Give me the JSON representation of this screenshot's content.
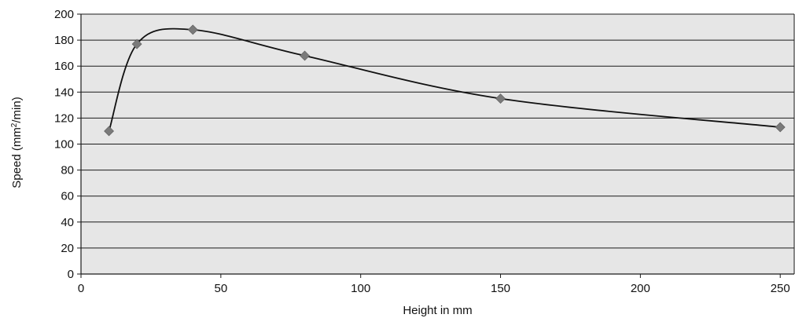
{
  "chart_data": {
    "type": "line",
    "title": "",
    "xlabel": "Height in mm",
    "ylabel": {
      "prefix": "Speed (mm",
      "superscript": "2",
      "suffix": "/min)"
    },
    "xlim": [
      0,
      255
    ],
    "ylim": [
      0,
      200
    ],
    "xticks": [
      0,
      50,
      100,
      150,
      200,
      250
    ],
    "yticks": [
      0,
      20,
      40,
      60,
      80,
      100,
      120,
      140,
      160,
      180,
      200
    ],
    "grid": "horizontal",
    "legend": "none",
    "series": [
      {
        "x": [
          10,
          20,
          40,
          80,
          150,
          250
        ],
        "y": [
          110,
          177,
          188,
          168,
          135,
          113
        ],
        "line": "smooth",
        "marker": "diamond"
      }
    ],
    "colors": {
      "plot_background": "#e6e6e6",
      "grid": "#1a1a1a",
      "line": "#111111",
      "marker": "#7a7a7a",
      "text": "#111111"
    }
  }
}
